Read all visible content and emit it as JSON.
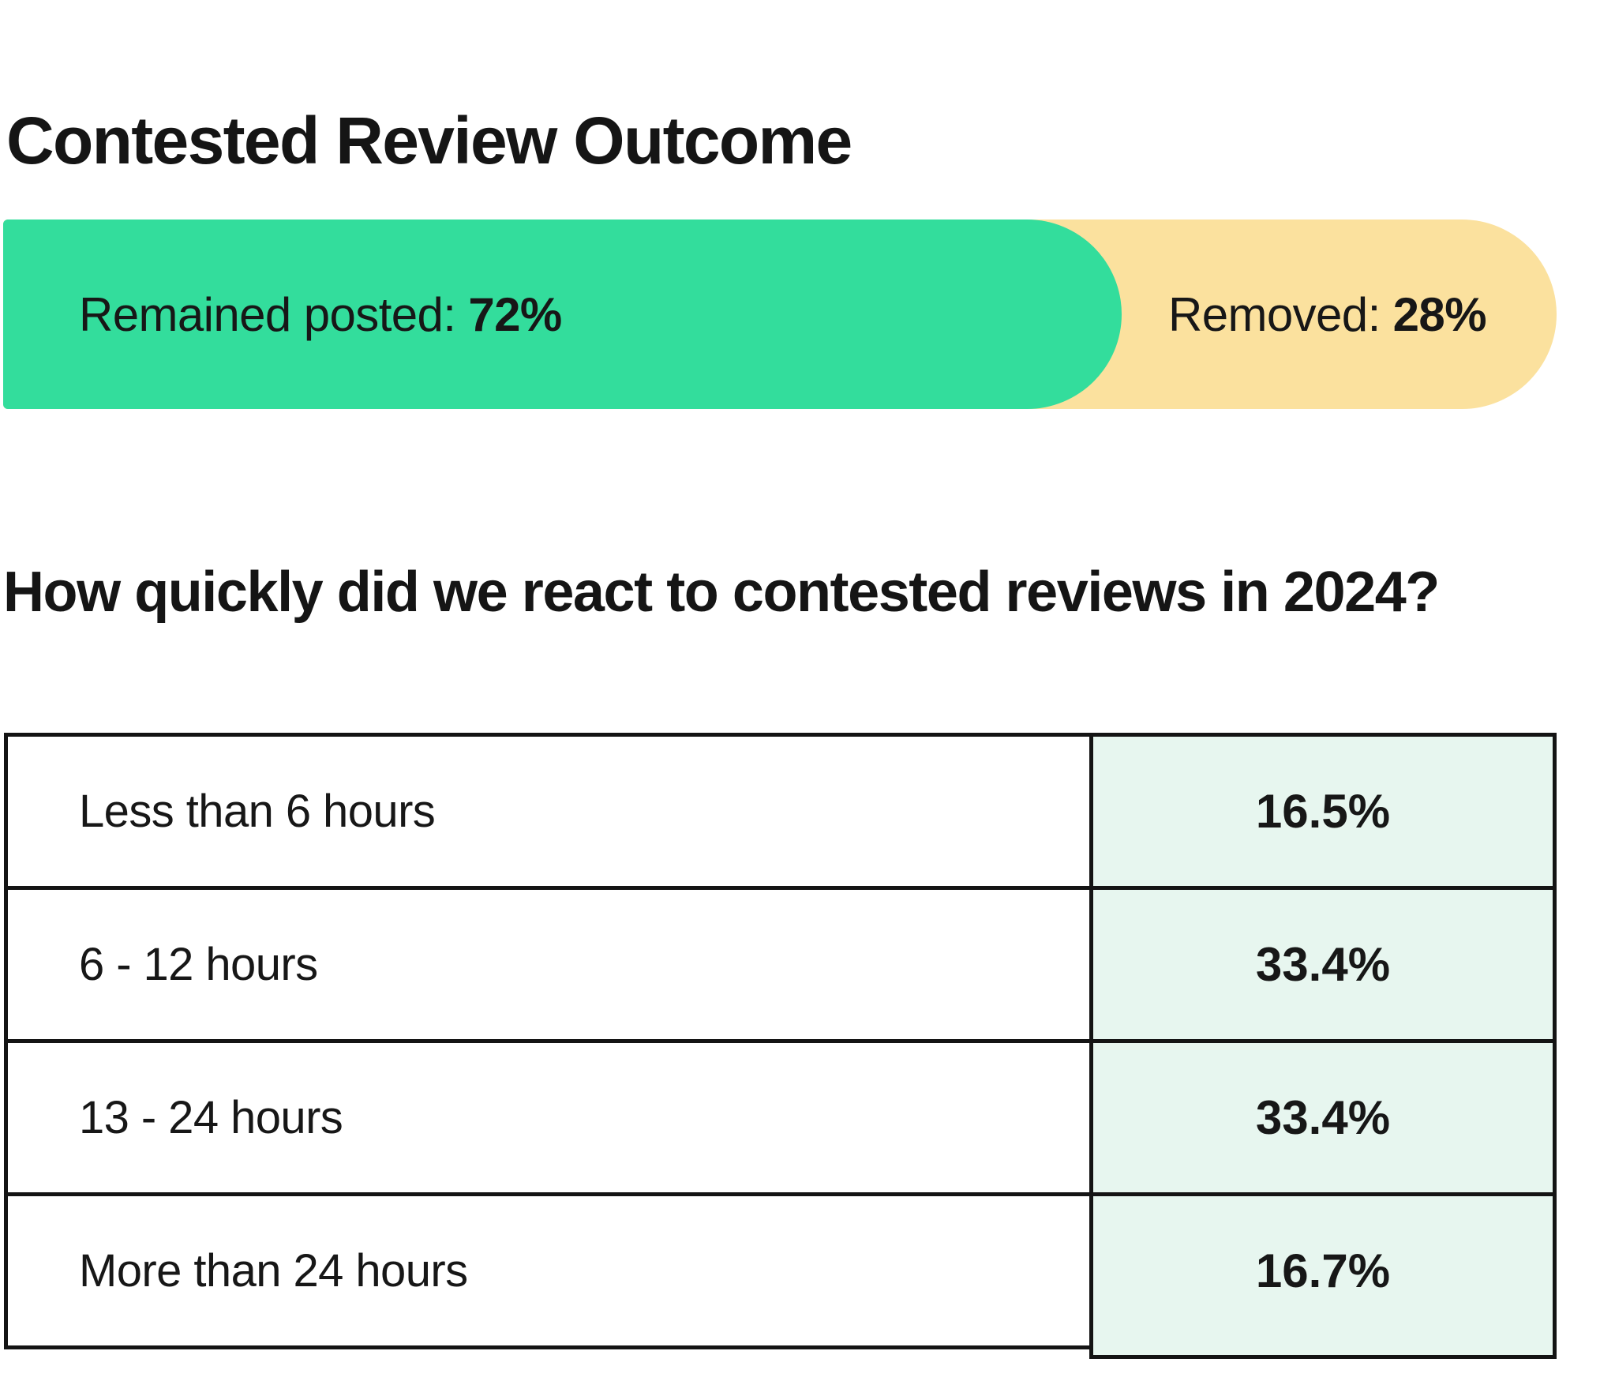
{
  "title": "Contested Review Outcome",
  "outcome_bar": {
    "segments": [
      {
        "name": "remained",
        "label": "Remained posted:",
        "value": "72%",
        "percent": 72,
        "color": "#33dd9c"
      },
      {
        "name": "removed",
        "label": "Removed:",
        "value": "28%",
        "percent": 28,
        "color": "#fbe19e"
      }
    ]
  },
  "reaction_section": {
    "title": "How quickly did we react to contested reviews in 2024?",
    "table": {
      "value_column_bg": "#e7f6ef",
      "border_color": "#141414",
      "rows": [
        {
          "label": "Less than 6 hours",
          "value": "16.5%"
        },
        {
          "label": "6 - 12 hours",
          "value": "33.4%"
        },
        {
          "label": "13 - 24 hours",
          "value": "33.4%"
        },
        {
          "label": "More than 24 hours",
          "value": "16.7%"
        }
      ]
    }
  },
  "chart_data": [
    {
      "type": "bar",
      "title": "Contested Review Outcome",
      "stacked": true,
      "unit": "%",
      "categories": [
        "Contested reviews"
      ],
      "series": [
        {
          "name": "Remained posted",
          "values": [
            72
          ],
          "color": "#33dd9c"
        },
        {
          "name": "Removed",
          "values": [
            28
          ],
          "color": "#fbe19e"
        }
      ]
    },
    {
      "type": "table",
      "title": "How quickly did we react to contested reviews in 2024?",
      "categories": [
        "Less than 6 hours",
        "6 - 12 hours",
        "13 - 24 hours",
        "More than 24 hours"
      ],
      "values": [
        16.5,
        33.4,
        33.4,
        16.7
      ],
      "unit": "%"
    }
  ]
}
